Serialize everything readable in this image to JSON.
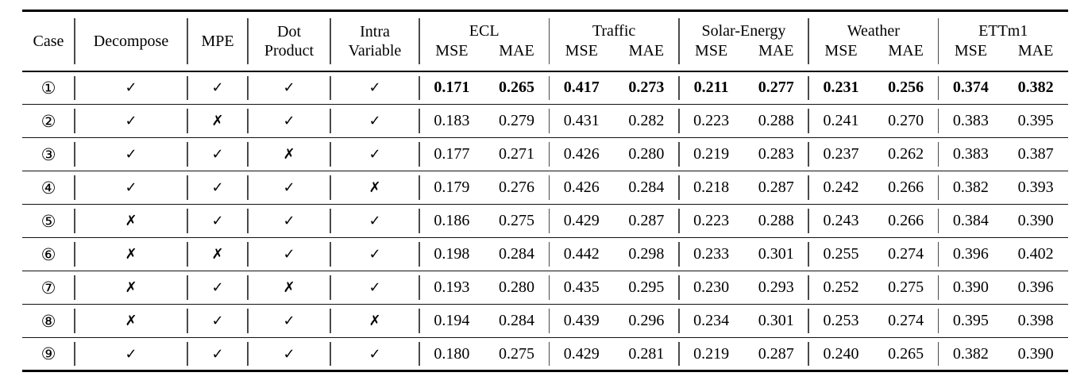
{
  "table": {
    "columns": [
      {
        "key": "case",
        "label": "Case"
      },
      {
        "key": "decompose",
        "label": "Decompose"
      },
      {
        "key": "mpe",
        "label": "MPE"
      },
      {
        "key": "dot_product",
        "label": "Dot\nProduct"
      },
      {
        "key": "intra_variable",
        "label": "Intra\nVariable"
      }
    ],
    "dataset_groups": [
      {
        "name": "ECL",
        "metrics": [
          "MSE",
          "MAE"
        ]
      },
      {
        "name": "Traffic",
        "metrics": [
          "MSE",
          "MAE"
        ]
      },
      {
        "name": "Solar-Energy",
        "metrics": [
          "MSE",
          "MAE"
        ]
      },
      {
        "name": "Weather",
        "metrics": [
          "MSE",
          "MAE"
        ]
      },
      {
        "name": "ETTm1",
        "metrics": [
          "MSE",
          "MAE"
        ]
      }
    ],
    "glyphs": {
      "check": "✓",
      "cross": "✗"
    },
    "rows": [
      {
        "case": "①",
        "flags": [
          true,
          true,
          true,
          true
        ],
        "bold": true,
        "values": [
          "0.171",
          "0.265",
          "0.417",
          "0.273",
          "0.211",
          "0.277",
          "0.231",
          "0.256",
          "0.374",
          "0.382"
        ]
      },
      {
        "case": "②",
        "flags": [
          true,
          false,
          true,
          true
        ],
        "bold": false,
        "values": [
          "0.183",
          "0.279",
          "0.431",
          "0.282",
          "0.223",
          "0.288",
          "0.241",
          "0.270",
          "0.383",
          "0.395"
        ]
      },
      {
        "case": "③",
        "flags": [
          true,
          true,
          false,
          true
        ],
        "bold": false,
        "values": [
          "0.177",
          "0.271",
          "0.426",
          "0.280",
          "0.219",
          "0.283",
          "0.237",
          "0.262",
          "0.383",
          "0.387"
        ]
      },
      {
        "case": "④",
        "flags": [
          true,
          true,
          true,
          false
        ],
        "bold": false,
        "values": [
          "0.179",
          "0.276",
          "0.426",
          "0.284",
          "0.218",
          "0.287",
          "0.242",
          "0.266",
          "0.382",
          "0.393"
        ]
      },
      {
        "case": "⑤",
        "flags": [
          false,
          true,
          true,
          true
        ],
        "bold": false,
        "values": [
          "0.186",
          "0.275",
          "0.429",
          "0.287",
          "0.223",
          "0.288",
          "0.243",
          "0.266",
          "0.384",
          "0.390"
        ]
      },
      {
        "case": "⑥",
        "flags": [
          false,
          false,
          true,
          true
        ],
        "bold": false,
        "values": [
          "0.198",
          "0.284",
          "0.442",
          "0.298",
          "0.233",
          "0.301",
          "0.255",
          "0.274",
          "0.396",
          "0.402"
        ]
      },
      {
        "case": "⑦",
        "flags": [
          false,
          true,
          false,
          true
        ],
        "bold": false,
        "values": [
          "0.193",
          "0.280",
          "0.435",
          "0.295",
          "0.230",
          "0.293",
          "0.252",
          "0.275",
          "0.390",
          "0.396"
        ]
      },
      {
        "case": "⑧",
        "flags": [
          false,
          true,
          true,
          false
        ],
        "bold": false,
        "values": [
          "0.194",
          "0.284",
          "0.439",
          "0.296",
          "0.234",
          "0.301",
          "0.253",
          "0.274",
          "0.395",
          "0.398"
        ]
      },
      {
        "case": "⑨",
        "flags": [
          true,
          true,
          true,
          true
        ],
        "bold": false,
        "values": [
          "0.180",
          "0.275",
          "0.429",
          "0.281",
          "0.219",
          "0.287",
          "0.240",
          "0.265",
          "0.382",
          "0.390"
        ]
      }
    ]
  }
}
